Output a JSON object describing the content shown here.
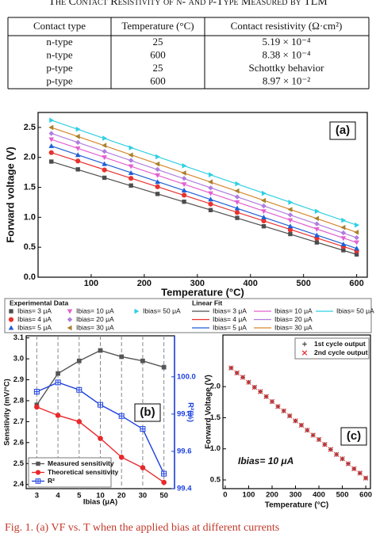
{
  "header": {
    "title": "The Contact Resistivity of n- and p-Type Measured by TLM"
  },
  "table": {
    "columns": [
      "Contact type",
      "Temperature (°C)",
      "Contact resistivity (Ω·cm²)"
    ],
    "rows": [
      [
        "n-type",
        "25",
        "5.19 × 10⁻⁴"
      ],
      [
        "n-type",
        "600",
        "8.38 × 10⁻⁴"
      ],
      [
        "p-type",
        "25",
        "Schottky behavior"
      ],
      [
        "p-type",
        "600",
        "8.97 × 10⁻²"
      ]
    ]
  },
  "chart_data": [
    {
      "type": "scatter",
      "annotation": "(a)",
      "xlabel": "Temperature (°C)",
      "ylabel": "Forward voltage (V)",
      "xlim": [
        0,
        620
      ],
      "xticks": [
        100,
        200,
        300,
        400,
        500,
        600
      ],
      "ylim": [
        0,
        2.75
      ],
      "yticks": [
        {
          "value": 0,
          "label": "0.0"
        },
        0.5,
        {
          "value": 1,
          "label": "1.0"
        },
        1.5,
        {
          "value": 2,
          "label": "2.0"
        },
        2.5
      ],
      "legend_title": "Experimental Data",
      "fit_legend_title": "Linear Fit",
      "x": [
        25,
        75,
        125,
        175,
        225,
        275,
        325,
        375,
        425,
        475,
        525,
        575,
        600
      ],
      "series": [
        {
          "name": "Ibias= 3 μA",
          "color": "#4d4d4d",
          "marker": "square",
          "values": [
            1.93,
            1.8,
            1.66,
            1.53,
            1.39,
            1.26,
            1.12,
            0.99,
            0.85,
            0.72,
            0.58,
            0.45,
            0.38
          ]
        },
        {
          "name": "Ibias= 4 μA",
          "color": "#e8322e",
          "marker": "circle",
          "values": [
            2.08,
            1.94,
            1.79,
            1.65,
            1.51,
            1.37,
            1.22,
            1.08,
            0.94,
            0.79,
            0.65,
            0.51,
            0.44
          ]
        },
        {
          "name": "Ibias= 5 μA",
          "color": "#1f5fd6",
          "marker": "up",
          "values": [
            2.19,
            2.04,
            1.89,
            1.74,
            1.59,
            1.45,
            1.3,
            1.15,
            1.0,
            0.85,
            0.7,
            0.55,
            0.48
          ]
        },
        {
          "name": "Ibias= 10 μA",
          "color": "#e45fcf",
          "marker": "down",
          "values": [
            2.3,
            2.15,
            2.0,
            1.85,
            1.7,
            1.55,
            1.4,
            1.25,
            1.1,
            0.95,
            0.8,
            0.65,
            0.58
          ]
        },
        {
          "name": "Ibias= 20 μA",
          "color": "#b07de0",
          "marker": "diamond",
          "values": [
            2.4,
            2.25,
            2.1,
            1.95,
            1.8,
            1.65,
            1.49,
            1.34,
            1.19,
            1.04,
            0.89,
            0.74,
            0.66
          ]
        },
        {
          "name": "Ibias= 30 μA",
          "color": "#a8802c",
          "marker": "left",
          "values": [
            2.5,
            2.35,
            2.2,
            2.04,
            1.89,
            1.74,
            1.59,
            1.44,
            1.28,
            1.13,
            0.98,
            0.83,
            0.75
          ]
        },
        {
          "name": "Ibias= 50 μA",
          "color": "#2fd0e3",
          "marker": "right",
          "values": [
            2.62,
            2.47,
            2.32,
            2.16,
            2.01,
            1.86,
            1.71,
            1.56,
            1.4,
            1.25,
            1.1,
            0.95,
            0.87
          ]
        }
      ],
      "fit_x": [
        25,
        600
      ],
      "fit_series": [
        {
          "name": "Ibias= 3 μA",
          "color": "#4d4d4d",
          "values": [
            1.93,
            0.38
          ]
        },
        {
          "name": "Ibias= 4 μA",
          "color": "#e8322e",
          "values": [
            2.08,
            0.44
          ]
        },
        {
          "name": "Ibias= 5 μA",
          "color": "#1f5fd6",
          "values": [
            2.19,
            0.48
          ]
        },
        {
          "name": "Ibias= 10 μA",
          "color": "#e45fcf",
          "values": [
            2.3,
            0.58
          ]
        },
        {
          "name": "Ibias= 20 μA",
          "color": "#b07de0",
          "values": [
            2.4,
            0.66
          ]
        },
        {
          "name": "Ibias= 30 μA",
          "color": "#d6862a",
          "values": [
            2.5,
            0.75
          ]
        },
        {
          "name": "Ibias= 50 μA",
          "color": "#2fd0e3",
          "values": [
            2.62,
            0.87
          ]
        }
      ]
    },
    {
      "type": "line",
      "annotation": "(b)",
      "xlabel": "Ibias (μA)",
      "ylabel": "Sensitivity (mV/°C)",
      "y2label": "R²(%)",
      "grid": "x",
      "categories": [
        "3",
        "4",
        "5",
        "10",
        "20",
        "30",
        "50"
      ],
      "ylim": [
        2.38,
        3.11
      ],
      "yticks": [
        2.4,
        2.5,
        2.6,
        2.7,
        2.8,
        2.9,
        {
          "value": 3,
          "label": "3.0"
        },
        3.1
      ],
      "y2lim": [
        99.4,
        100.22
      ],
      "y2ticks": [
        99.4,
        99.6,
        99.8,
        {
          "value": 100,
          "label": "100.0"
        }
      ],
      "y2color": "#1a3fe0",
      "series": [
        {
          "name": "Measured sensitivity",
          "color": "#555555",
          "marker": "square",
          "values": [
            2.78,
            2.93,
            2.99,
            3.04,
            3.01,
            2.99,
            2.96
          ]
        },
        {
          "name": "Theoretical sensitivity",
          "color": "#e8282b",
          "marker": "circle",
          "values": [
            2.77,
            2.73,
            2.7,
            2.62,
            2.53,
            2.48,
            2.41
          ]
        },
        {
          "name": "R²",
          "color": "#1a3fe0",
          "marker": "squareplus",
          "axis": "y2",
          "values": [
            99.92,
            99.97,
            99.93,
            99.85,
            99.79,
            99.72,
            99.48
          ]
        }
      ]
    },
    {
      "type": "scatter",
      "annotation": "(c)",
      "annotation_text": "Ibias= 10 μA",
      "xlabel": "Temperature (°C)",
      "ylabel": "Forward Voltage (V)",
      "xlim": [
        -10,
        620
      ],
      "xticks": [
        0,
        100,
        200,
        300,
        400,
        500,
        600
      ],
      "ylim": [
        0.36,
        2.83
      ],
      "yticks": [
        0.5,
        {
          "value": 1,
          "label": "1.0"
        },
        1.5,
        {
          "value": 2,
          "label": "2.0"
        }
      ],
      "x": [
        25,
        50,
        75,
        100,
        125,
        150,
        175,
        200,
        225,
        250,
        275,
        300,
        325,
        350,
        375,
        400,
        425,
        450,
        475,
        500,
        525,
        550,
        575,
        600
      ],
      "series": [
        {
          "name": "1st cycle output",
          "color": "#444444",
          "marker": "plus",
          "values": [
            2.3,
            2.22,
            2.15,
            2.07,
            1.99,
            1.92,
            1.84,
            1.76,
            1.68,
            1.61,
            1.53,
            1.45,
            1.38,
            1.3,
            1.22,
            1.15,
            1.07,
            0.99,
            0.91,
            0.84,
            0.76,
            0.68,
            0.61,
            0.53
          ]
        },
        {
          "name": "2nd cycle output",
          "color": "#e8282b",
          "marker": "cross",
          "values": [
            2.3,
            2.22,
            2.15,
            2.07,
            1.99,
            1.92,
            1.84,
            1.76,
            1.68,
            1.61,
            1.53,
            1.45,
            1.38,
            1.3,
            1.22,
            1.15,
            1.07,
            0.99,
            0.91,
            0.84,
            0.76,
            0.68,
            0.61,
            0.53
          ]
        }
      ]
    }
  ],
  "caption": "Fig. 1. (a) VF vs. T when the applied bias at different currents"
}
